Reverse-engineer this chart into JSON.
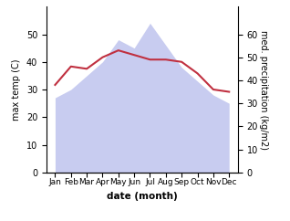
{
  "months": [
    "Jan",
    "Feb",
    "Mar",
    "Apr",
    "May",
    "Jun",
    "Jul",
    "Aug",
    "Sep",
    "Oct",
    "Nov",
    "Dec"
  ],
  "temp": [
    27,
    30,
    35,
    40,
    48,
    45,
    54,
    46,
    38,
    33,
    28,
    25
  ],
  "precip": [
    38,
    46,
    45,
    50,
    53,
    51,
    49,
    49,
    48,
    43,
    36,
    35
  ],
  "temp_fill_color": "#c8ccf0",
  "precip_color": "#c03040",
  "temp_ylim": [
    0,
    60
  ],
  "precip_ylim": [
    0,
    72
  ],
  "ylabel_left": "max temp (C)",
  "ylabel_right": "med. precipitation (kg/m2)",
  "xlabel": "date (month)",
  "left_yticks": [
    0,
    10,
    20,
    30,
    40,
    50
  ],
  "right_yticks": [
    0,
    10,
    20,
    30,
    40,
    50,
    60
  ]
}
